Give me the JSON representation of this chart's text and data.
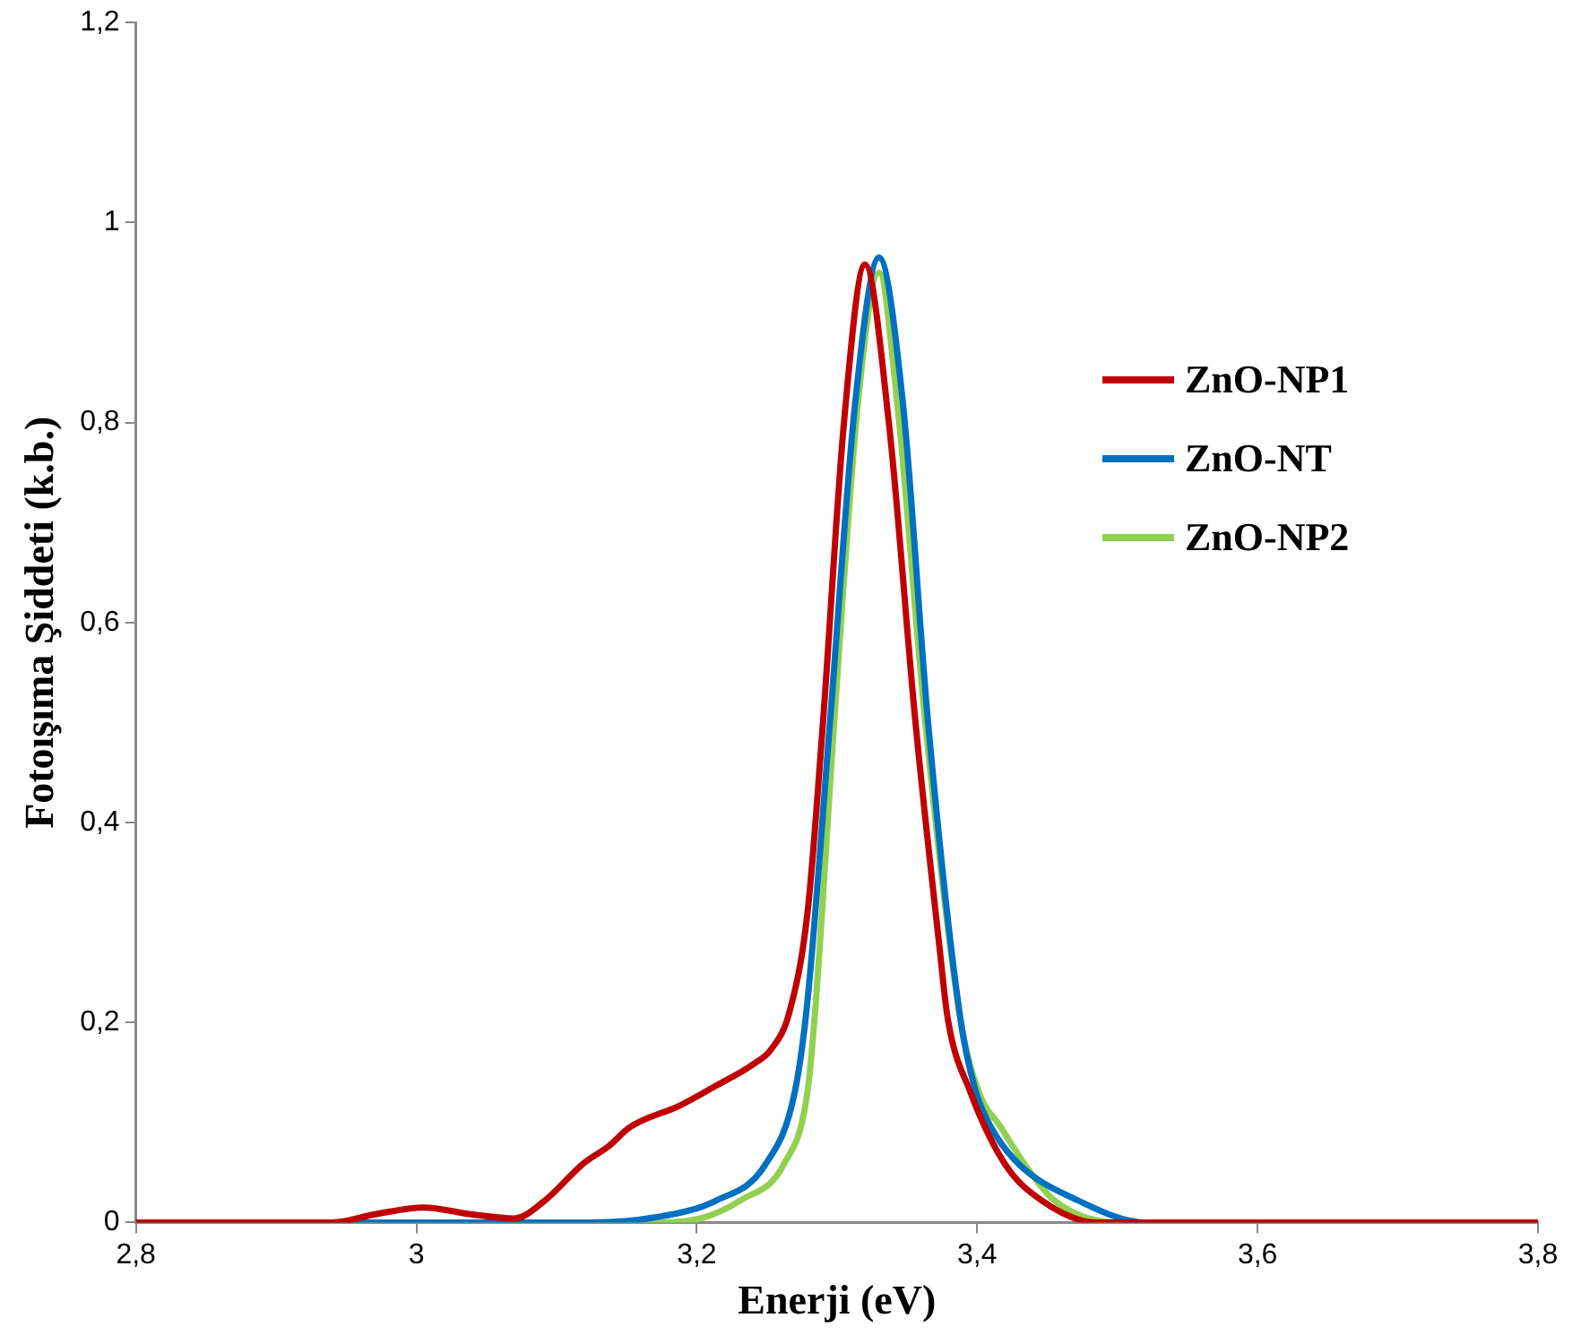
{
  "chart_data": {
    "type": "line",
    "xlabel": "Enerji (eV)",
    "ylabel": "Fotoışıma Şiddeti (k.b.)",
    "xlim": [
      2.8,
      3.8
    ],
    "ylim": [
      0,
      1.2
    ],
    "xticks": [
      {
        "value": 2.8,
        "label": "2,8"
      },
      3,
      {
        "value": 3.2,
        "label": "3,2"
      },
      {
        "value": 3.4,
        "label": "3,4"
      },
      {
        "value": 3.6,
        "label": "3,6"
      },
      {
        "value": 3.8,
        "label": "3,8"
      }
    ],
    "yticks": [
      0,
      {
        "value": 0.2,
        "label": "0,2"
      },
      {
        "value": 0.4,
        "label": "0,4"
      },
      {
        "value": 0.6,
        "label": "0,6"
      },
      {
        "value": 0.8,
        "label": "0,8"
      },
      1,
      {
        "value": 1.2,
        "label": "1,2"
      }
    ],
    "grid": false,
    "legend": "right",
    "marker": "none",
    "line_style": "solid",
    "series": [
      {
        "name": "ZnO-NP1",
        "color": "#c00000",
        "x": [
          2.8,
          2.94,
          2.97,
          3.005,
          3.04,
          3.07,
          3.09,
          3.12,
          3.137,
          3.152,
          3.188,
          3.214,
          3.24,
          3.253,
          3.266,
          3.279,
          3.29,
          3.305,
          3.32,
          3.337,
          3.356,
          3.373,
          3.379,
          3.395,
          3.42,
          3.446,
          3.485,
          3.8
        ],
        "values": [
          0,
          0,
          0.008,
          0.015,
          0.008,
          0.004,
          0.02,
          0.06,
          0.076,
          0.095,
          0.117,
          0.137,
          0.158,
          0.173,
          0.21,
          0.31,
          0.5,
          0.8,
          0.958,
          0.8,
          0.5,
          0.277,
          0.204,
          0.131,
          0.058,
          0.022,
          0,
          0
        ]
      },
      {
        "name": "ZnO-NT",
        "color": "#0070c0",
        "x": [
          2.8,
          3.124,
          3.17,
          3.214,
          3.249,
          3.27,
          3.279,
          3.295,
          3.313,
          3.33,
          3.347,
          3.365,
          3.388,
          3.399,
          3.41,
          3.43,
          3.472,
          3.52,
          3.8
        ],
        "values": [
          0,
          0,
          0.005,
          0.022,
          0.058,
          0.131,
          0.222,
          0.5,
          0.82,
          0.965,
          0.82,
          0.5,
          0.204,
          0.131,
          0.095,
          0.058,
          0.022,
          0,
          0
        ]
      },
      {
        "name": "ZnO-NP2",
        "color": "#92d050",
        "x": [
          2.8,
          3.175,
          3.205,
          3.231,
          3.262,
          3.279,
          3.285,
          3.298,
          3.315,
          3.33,
          3.343,
          3.363,
          3.388,
          3.401,
          3.417,
          3.434,
          3.455,
          3.5,
          3.8
        ],
        "values": [
          0,
          0,
          0.005,
          0.022,
          0.058,
          0.131,
          0.222,
          0.5,
          0.82,
          0.95,
          0.82,
          0.5,
          0.204,
          0.131,
          0.095,
          0.058,
          0.022,
          0,
          0
        ]
      }
    ]
  }
}
